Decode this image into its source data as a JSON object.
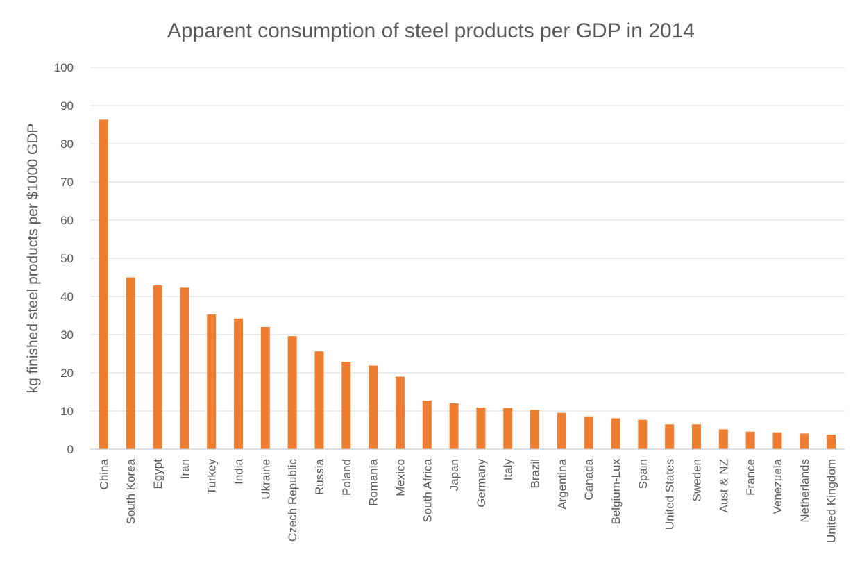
{
  "chart_data": {
    "type": "bar",
    "title": "Apparent consumption of steel products per GDP in 2014",
    "xlabel": "",
    "ylabel": "kg finished steel products per $1000 GDP",
    "ylim": [
      0,
      100
    ],
    "yticks": [
      0,
      10,
      20,
      30,
      40,
      50,
      60,
      70,
      80,
      90,
      100
    ],
    "grid": true,
    "legend": "none",
    "bar_color": "#ED7D31",
    "categories": [
      "China",
      "South Korea",
      "Egypt",
      "Iran",
      "Turkey",
      "India",
      "Ukraine",
      "Czech Republic",
      "Russia",
      "Poland",
      "Romania",
      "Mexico",
      "South Africa",
      "Japan",
      "Germany",
      "Italy",
      "Brazil",
      "Argentina",
      "Canada",
      "Belgium-Lux",
      "Spain",
      "United States",
      "Sweden",
      "Aust & NZ",
      "France",
      "Venezuela",
      "Netherlands",
      "United Kingdom"
    ],
    "values": [
      86.3,
      45.0,
      42.9,
      42.3,
      35.3,
      34.2,
      32.0,
      29.6,
      25.6,
      22.9,
      21.9,
      19.0,
      12.7,
      12.0,
      10.9,
      10.8,
      10.3,
      9.5,
      8.6,
      8.1,
      7.7,
      6.5,
      6.5,
      5.2,
      4.6,
      4.4,
      4.1,
      3.8
    ]
  }
}
